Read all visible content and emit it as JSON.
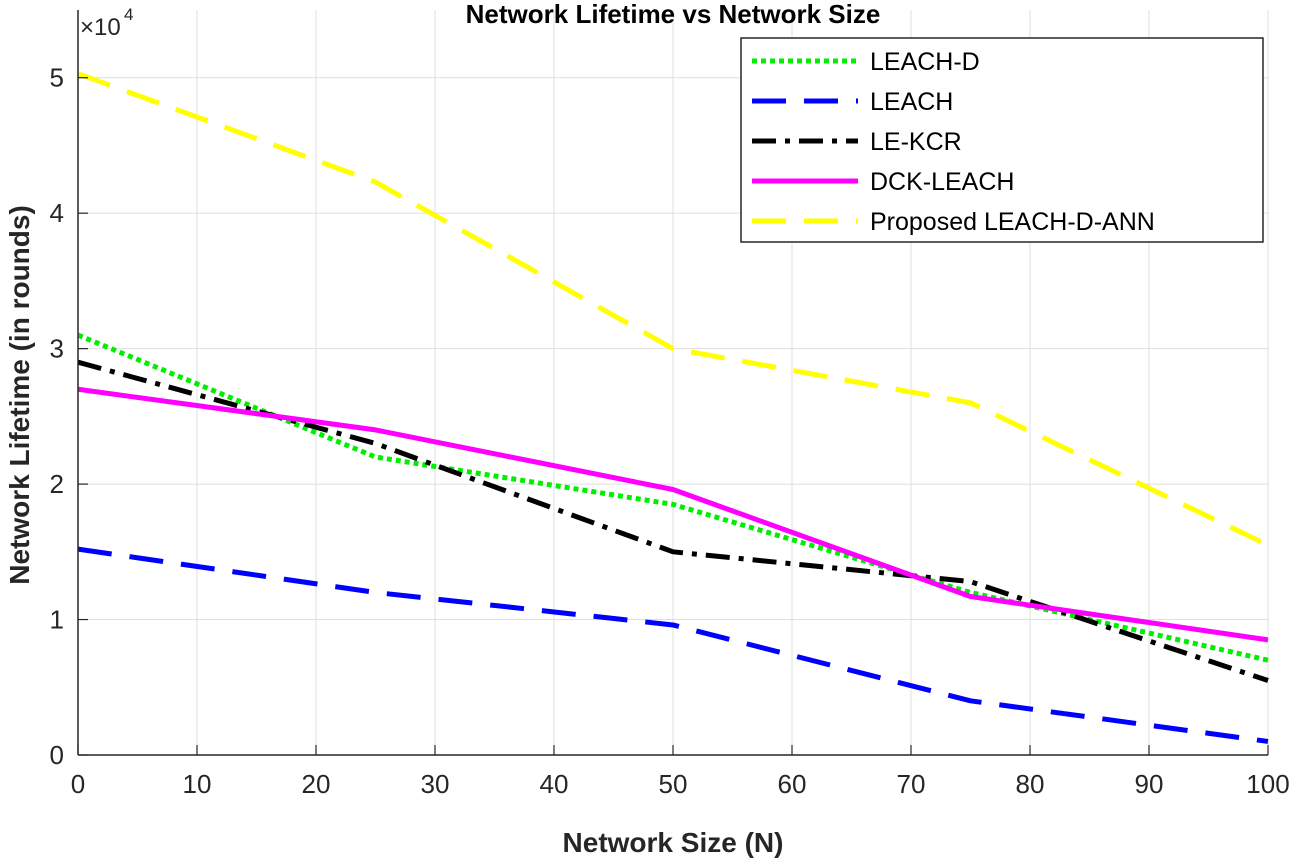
{
  "chart_data": {
    "type": "line",
    "title": "Network Lifetime vs Network Size",
    "xlabel": "Network Size (N)",
    "ylabel": "Network Lifetime (in rounds)",
    "y_exponent_label": "×10",
    "y_exponent_power": "4",
    "xlim": [
      0,
      100
    ],
    "ylim": [
      0,
      5.5
    ],
    "xticks": [
      0,
      10,
      20,
      30,
      40,
      50,
      60,
      70,
      80,
      90,
      100
    ],
    "xtick_labels": [
      "0",
      "10",
      "20",
      "30",
      "40",
      "50",
      "60",
      "70",
      "80",
      "90",
      "100"
    ],
    "yticks": [
      0,
      1,
      2,
      3,
      4,
      5
    ],
    "ytick_labels": [
      "0",
      "1",
      "2",
      "3",
      "4",
      "5"
    ],
    "grid": true,
    "legend_position": "top-right",
    "series": [
      {
        "name": "LEACH-D",
        "color": "#00ee00",
        "style": "dotted",
        "x": [
          0,
          25,
          50,
          75,
          100
        ],
        "values": [
          3.1,
          2.2,
          1.85,
          1.2,
          0.7
        ]
      },
      {
        "name": "LEACH",
        "color": "#0000ff",
        "style": "dashed",
        "x": [
          0,
          25,
          50,
          75,
          100
        ],
        "values": [
          1.52,
          1.2,
          0.96,
          0.4,
          0.1
        ]
      },
      {
        "name": "LE-KCR",
        "color": "#000000",
        "style": "dashdot",
        "x": [
          0,
          25,
          50,
          75,
          100
        ],
        "values": [
          2.9,
          2.3,
          1.5,
          1.28,
          0.55
        ]
      },
      {
        "name": "DCK-LEACH",
        "color": "#ff00ff",
        "style": "solid",
        "x": [
          0,
          25,
          50,
          75,
          100
        ],
        "values": [
          2.7,
          2.4,
          1.96,
          1.17,
          0.85
        ]
      },
      {
        "name": "Proposed LEACH-D-ANN",
        "color": "#ffff00",
        "style": "dashed",
        "x": [
          0,
          25,
          50,
          75,
          100
        ],
        "values": [
          5.03,
          4.23,
          3.0,
          2.6,
          1.55
        ]
      }
    ]
  }
}
